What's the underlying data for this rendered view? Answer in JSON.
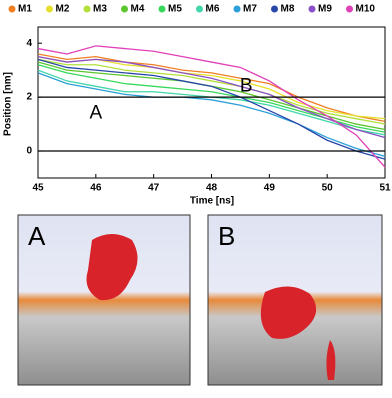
{
  "chart_data": {
    "type": "line",
    "xlabel": "Time [ns]",
    "ylabel": "Position [nm]",
    "x": [
      45,
      45.5,
      46,
      46.5,
      47,
      47.5,
      48,
      48.5,
      49,
      49.5,
      50,
      50.5,
      51
    ],
    "xlim": [
      45,
      51
    ],
    "xticks": [
      45,
      46,
      47,
      48,
      49,
      50,
      51
    ],
    "ylim": [
      -1,
      4.6
    ],
    "yticks": [
      0,
      2,
      4
    ],
    "reference_lines": [
      0,
      2
    ],
    "annotations": [
      {
        "text": "A",
        "x": 46,
        "y": 1.4
      },
      {
        "text": "B",
        "x": 48.6,
        "y": 2.4
      }
    ],
    "series": [
      {
        "name": "M1",
        "color": "#f07f22",
        "values": [
          3.6,
          3.4,
          3.5,
          3.3,
          3.2,
          3.0,
          2.9,
          2.7,
          2.5,
          2.0,
          1.6,
          1.3,
          1.1
        ]
      },
      {
        "name": "M2",
        "color": "#e6e02c",
        "values": [
          3.5,
          3.3,
          3.4,
          3.2,
          3.1,
          2.9,
          2.8,
          2.6,
          2.3,
          1.8,
          1.5,
          1.3,
          1.2
        ]
      },
      {
        "name": "M3",
        "color": "#b3df3a",
        "values": [
          3.4,
          3.2,
          3.2,
          3.0,
          2.9,
          2.8,
          2.6,
          2.4,
          2.1,
          1.7,
          1.4,
          1.2,
          1.0
        ]
      },
      {
        "name": "M4",
        "color": "#5cc62e",
        "values": [
          3.3,
          3.0,
          2.9,
          2.8,
          2.7,
          2.6,
          2.4,
          2.2,
          1.9,
          1.6,
          1.3,
          1.0,
          0.8
        ]
      },
      {
        "name": "M5",
        "color": "#38d85c",
        "values": [
          3.2,
          2.9,
          2.7,
          2.5,
          2.4,
          2.3,
          2.2,
          2.0,
          1.8,
          1.5,
          1.2,
          0.9,
          0.7
        ]
      },
      {
        "name": "M6",
        "color": "#42d6aa",
        "values": [
          3.0,
          2.6,
          2.4,
          2.2,
          2.2,
          2.1,
          2.0,
          1.9,
          1.7,
          1.4,
          1.1,
          0.8,
          0.6
        ]
      },
      {
        "name": "M7",
        "color": "#2a9fd8",
        "values": [
          2.9,
          2.5,
          2.3,
          2.1,
          2.0,
          2.0,
          1.9,
          1.7,
          1.4,
          1.0,
          0.5,
          0.1,
          -0.2
        ]
      },
      {
        "name": "M8",
        "color": "#2846a8",
        "values": [
          3.4,
          3.1,
          3.0,
          2.9,
          2.8,
          2.6,
          2.4,
          2.0,
          1.5,
          1.0,
          0.4,
          0.0,
          -0.3
        ]
      },
      {
        "name": "M9",
        "color": "#8a50c8",
        "values": [
          3.5,
          3.3,
          3.4,
          3.3,
          3.1,
          2.9,
          2.7,
          2.4,
          2.1,
          1.6,
          1.2,
          0.8,
          0.5
        ]
      },
      {
        "name": "M10",
        "color": "#e040b8",
        "values": [
          3.8,
          3.6,
          3.9,
          3.8,
          3.7,
          3.5,
          3.3,
          3.1,
          2.6,
          1.9,
          1.3,
          0.6,
          -0.6
        ]
      }
    ]
  },
  "panels": [
    {
      "label": "A"
    },
    {
      "label": "B"
    }
  ]
}
